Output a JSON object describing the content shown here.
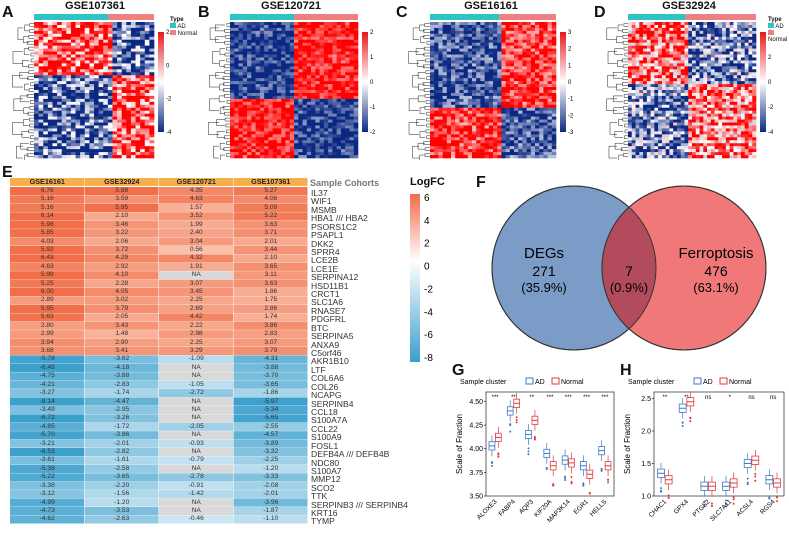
{
  "panels": {
    "A": {
      "label": "A",
      "title": "GSE107361",
      "ticks": [
        "2",
        "0",
        "-2",
        "-4"
      ]
    },
    "B": {
      "label": "B",
      "title": "GSE120721",
      "ticks": [
        "2",
        "1",
        "0",
        "-1",
        "-2"
      ]
    },
    "C": {
      "label": "C",
      "title": "GSE16161",
      "ticks": [
        "3",
        "2",
        "1",
        "0",
        "-1",
        "-2",
        "-3"
      ]
    },
    "D": {
      "label": "D",
      "title": "GSE32924",
      "ticks": [
        "4",
        "2",
        "0",
        "-2",
        "-4"
      ]
    },
    "E": {
      "label": "E"
    },
    "F": {
      "label": "F"
    },
    "G": {
      "label": "G"
    },
    "H": {
      "label": "H"
    }
  },
  "legend_type": {
    "title": "Type",
    "ad": "AD",
    "normal": "Normal"
  },
  "colors": {
    "ad": "#2ec4c4",
    "normal": "#f08080",
    "red": "#e41a1c",
    "blue": "#1f4e9a",
    "orange": "#f4b04c",
    "deg": "#7a9cc6",
    "ferro": "#f07878",
    "overlap": "#b24c5c"
  },
  "table": {
    "headers": [
      "GSE16161",
      "GSE32924",
      "GSE120721",
      "GSE107361"
    ],
    "sample_cohorts": "Sample Cohorts",
    "logfc_title": "LogFC",
    "logfc_ticks": [
      "6",
      "4",
      "2",
      "0",
      "-2",
      "-4",
      "-6",
      "-8"
    ],
    "rows": [
      [
        "6.76",
        "5.88",
        "4.35",
        "5.27",
        "IL37"
      ],
      [
        "5.16",
        "3.59",
        "4.63",
        "4.06",
        "WIF1"
      ],
      [
        "5.16",
        "5.95",
        "1.57",
        "5.09",
        "MSMB"
      ],
      [
        "6.14",
        "2.10",
        "3.52",
        "5.22",
        "HBA1 /// HBA2"
      ],
      [
        "5.98",
        "3.46",
        "1.99",
        "3.63",
        "PSORS1C2"
      ],
      [
        "5.85",
        "3.22",
        "2.40",
        "3.71",
        "PSAPL1"
      ],
      [
        "4.03",
        "2.06",
        "3.04",
        "2.01",
        "DKK2"
      ],
      [
        "5.92",
        "3.72",
        "0.56",
        "3.44",
        "SPRR4"
      ],
      [
        "6.43",
        "4.29",
        "4.32",
        "2.10",
        "LCE2B"
      ],
      [
        "4.63",
        "2.92",
        "1.91",
        "3.65",
        "LCE1E"
      ],
      [
        "5.99",
        "4.10",
        "NA",
        "3.11",
        "SERPINA12"
      ],
      [
        "5.25",
        "2.28",
        "3.07",
        "3.63",
        "HSD11B1"
      ],
      [
        "6.00",
        "4.05",
        "3.45",
        "1.86",
        "CRCT1"
      ],
      [
        "2.89",
        "3.02",
        "2.25",
        "1.75",
        "SLC1A6"
      ],
      [
        "5.95",
        "3.79",
        "2.69",
        "2.86",
        "RNASE7"
      ],
      [
        "5.63",
        "2.05",
        "4.42",
        "1.74",
        "PDGFRL"
      ],
      [
        "2.80",
        "3.43",
        "2.22",
        "3.86",
        "BTC"
      ],
      [
        "2.99",
        "1.48",
        "2.98",
        "2.83",
        "SERPINA5"
      ],
      [
        "3.94",
        "2.90",
        "2.25",
        "3.07",
        "ANXA9"
      ],
      [
        "3.68",
        "3.41",
        "3.29",
        "3.79",
        "C5orf46"
      ],
      [
        "-5.78",
        "-3.62",
        "-1.09",
        "-4.31",
        "AKR1B10"
      ],
      [
        "-6.48",
        "-4.18",
        "NA",
        "-3.88",
        "LTF"
      ],
      [
        "-4.75",
        "-3.88",
        "NA",
        "-3.70",
        "COL6A6"
      ],
      [
        "-4.21",
        "-2.83",
        "-1.05",
        "-3.65",
        "COL26"
      ],
      [
        "-3.27",
        "-1.74",
        "-2.72",
        "-1.86",
        "NCAPG"
      ],
      [
        "-8.14",
        "-4.47",
        "NA",
        "-5.97",
        "SERPINB4"
      ],
      [
        "-3.49",
        "-2.95",
        "NA",
        "-5.34",
        "CCL18"
      ],
      [
        "-6.72",
        "-3.26",
        "NA",
        "-5.65",
        "S100A7A"
      ],
      [
        "-4.85",
        "-1.72",
        "-2.05",
        "-2.55",
        "CCL22"
      ],
      [
        "-5.70",
        "-3.86",
        "NA",
        "-4.57",
        "S100A9"
      ],
      [
        "-3.21",
        "-2.01",
        "-0.93",
        "-3.89",
        "FOSL1"
      ],
      [
        "-6.53",
        "-2.82",
        "NA",
        "-3.32",
        "DEFB4A /// DEFB4B"
      ],
      [
        "-3.61",
        "-1.61",
        "-0.79",
        "-2.25",
        "NDC80"
      ],
      [
        "-5.38",
        "-2.58",
        "NA",
        "-1.20",
        "S100A7"
      ],
      [
        "-5.22",
        "-3.65",
        "-2.78",
        "-3.33",
        "MMP12"
      ],
      [
        "-3.38",
        "-2.20",
        "-0.91",
        "-2.08",
        "SCO2"
      ],
      [
        "-3.12",
        "-1.56",
        "-1.42",
        "-2.01",
        "TTK"
      ],
      [
        "-4.99",
        "-1.20",
        "NA",
        "-3.96",
        "SERPINB3 /// SERPINB4"
      ],
      [
        "-4.73",
        "-3.53",
        "NA",
        "-1.87",
        "KRT16"
      ],
      [
        "-4.62",
        "-2.63",
        "-0.46",
        "-1.10",
        "TYMP"
      ]
    ]
  },
  "venn": {
    "left_label": "DEGs",
    "left_count": "271",
    "left_pct": "(35.9%)",
    "mid_count": "7",
    "mid_pct": "(0.9%)",
    "right_label": "Ferroptosis",
    "right_count": "476",
    "right_pct": "(63.1%)"
  },
  "chart_data": [
    {
      "type": "box",
      "title": "",
      "legend_title": "Sample cluster",
      "series": [
        {
          "name": "AD"
        },
        {
          "name": "Normal"
        }
      ],
      "ylabel": "Scale of Fraction",
      "ylim": [
        3.5,
        4.6
      ],
      "yticks": [
        "3.50",
        "3.75",
        "4.00",
        "4.25",
        "4.50"
      ],
      "categories": [
        "ALOXE3",
        "FABP4",
        "AQP3",
        "KIF20A",
        "MAP3K14",
        "EGR1",
        "HELLS"
      ],
      "significance": [
        "***",
        "**",
        "**",
        "***",
        "***",
        "***",
        "***"
      ],
      "medians_ad": [
        4.03,
        4.4,
        4.15,
        3.95,
        3.88,
        3.82,
        3.98
      ],
      "medians_normal": [
        4.12,
        4.48,
        4.3,
        3.82,
        3.85,
        3.73,
        3.82
      ]
    },
    {
      "type": "box",
      "legend_title": "Sample cluster",
      "series": [
        {
          "name": "AD"
        },
        {
          "name": "Normal"
        }
      ],
      "ylabel": "Scale of Fraction",
      "ylim": [
        1.0,
        2.6
      ],
      "yticks": [
        "1.0",
        "1.5",
        "2.0",
        "2.5"
      ],
      "categories": [
        "CHAC1",
        "GPX4",
        "PTGS2",
        "SLC7A11",
        "ACSL4",
        "RGS4"
      ],
      "significance": [
        "**",
        "**",
        "ns",
        "*",
        "ns",
        "ns"
      ],
      "medians_ad": [
        1.35,
        2.35,
        1.15,
        1.15,
        1.5,
        1.25
      ],
      "medians_normal": [
        1.25,
        2.45,
        1.15,
        1.2,
        1.55,
        1.2
      ]
    }
  ]
}
